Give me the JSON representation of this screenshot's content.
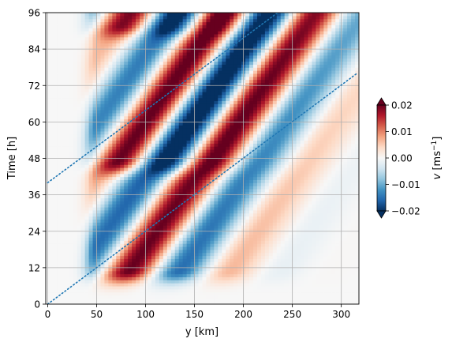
{
  "chart_data": {
    "type": "heatmap",
    "title": "",
    "xlabel": "y [km]",
    "ylabel": "Time [h]",
    "xlim": [
      -2,
      318
    ],
    "ylim": [
      0,
      96
    ],
    "x_ticks": [
      0,
      50,
      100,
      150,
      200,
      250,
      300
    ],
    "y_ticks": [
      0,
      12,
      24,
      36,
      48,
      60,
      72,
      84,
      96
    ],
    "grid": true,
    "colormap": "RdBu_r",
    "colorbar": {
      "label": "v [ms⁻¹]",
      "label_italic_symbol": "v",
      "label_unit": "[ms",
      "label_unit_sup": "−1",
      "label_unit_close": "]",
      "range": [
        -0.02,
        0.02
      ],
      "extend": "both",
      "ticks": [
        0.02,
        0.01,
        0.0,
        -0.01,
        -0.02
      ],
      "tick_labels": [
        "0.02",
        "0.01",
        "0.00",
        "−0.01",
        "−0.02"
      ]
    },
    "field_model": {
      "description": "wave packets propagating in +y; phase speed about 2.2 km/h, wavelength about 110 km",
      "bursts": [
        {
          "y_center": 92,
          "t_center": 15,
          "amplitude": 0.02
        },
        {
          "y_center": 88,
          "t_center": 51,
          "amplitude": 0.017
        },
        {
          "y_center": 88,
          "t_center": 96,
          "amplitude": 0.013
        }
      ],
      "phase_speed_km_per_h": 2.2,
      "wavelength_km": 110
    },
    "reference_lines": [
      {
        "style": "dotted",
        "color": "#1f77b4",
        "x": [
          0,
          316
        ],
        "y": [
          0,
          76
        ]
      },
      {
        "style": "dotted",
        "color": "#1f77b4",
        "x": [
          0,
          235
        ],
        "y": [
          40,
          96
        ]
      }
    ]
  }
}
